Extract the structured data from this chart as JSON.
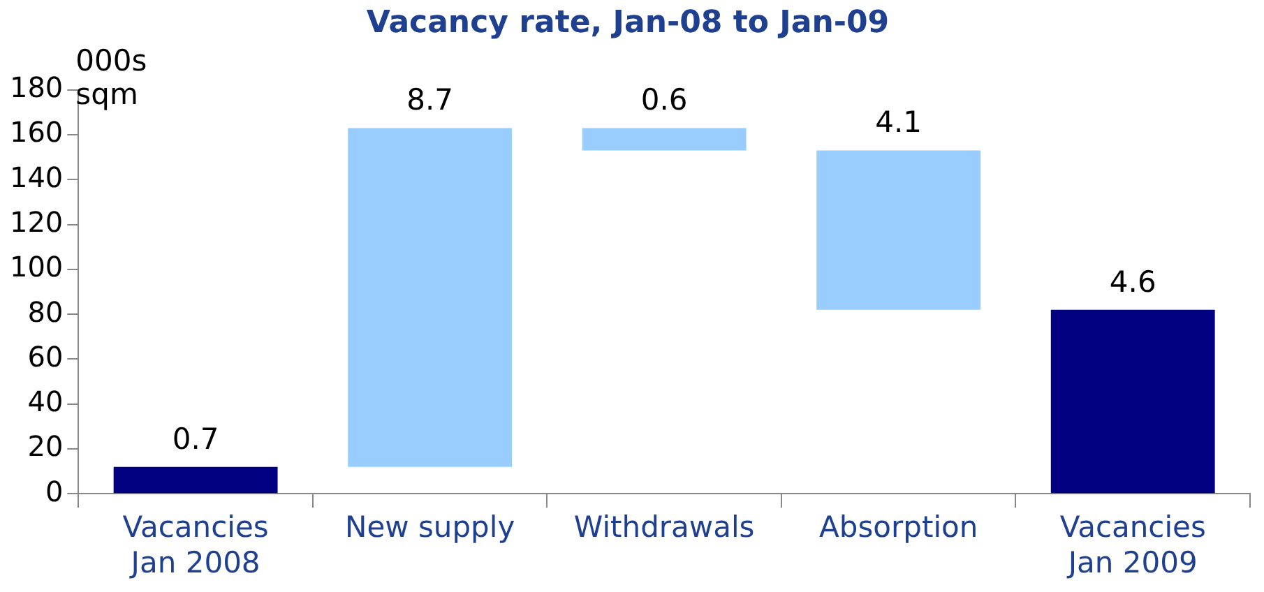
{
  "chart_data": {
    "type": "bar",
    "title": "Vacancy rate, Jan-08 to Jan-09",
    "ylabel": "000s sqm",
    "categories": [
      "Vacancies\nJan 2008",
      "New supply",
      "Withdrawals",
      "Absorption",
      "Vacancies\nJan 2009"
    ],
    "base": [
      0,
      12,
      163,
      153,
      0
    ],
    "values": [
      12,
      151,
      -10,
      -71,
      82
    ],
    "colors": [
      "#000080",
      "#99ccff",
      "#99ccff",
      "#99ccff",
      "#000080"
    ],
    "annotations": [
      {
        "text": "0.7",
        "x": "Vacancies\nJan 2008",
        "y": 12
      },
      {
        "text": "8.7",
        "x": "New supply",
        "y": 163
      },
      {
        "text": "0.6",
        "x": "Withdrawals",
        "y": 163
      },
      {
        "text": "4.1",
        "x": "Absorption",
        "y": 153
      },
      {
        "text": "4.6",
        "x": "Vacancies\nJan 2009",
        "y": 82
      }
    ],
    "ylim": [
      0,
      180
    ],
    "yticks": [
      0,
      20,
      40,
      60,
      80,
      100,
      120,
      140,
      160,
      180
    ],
    "grid": false,
    "legend": false
  }
}
